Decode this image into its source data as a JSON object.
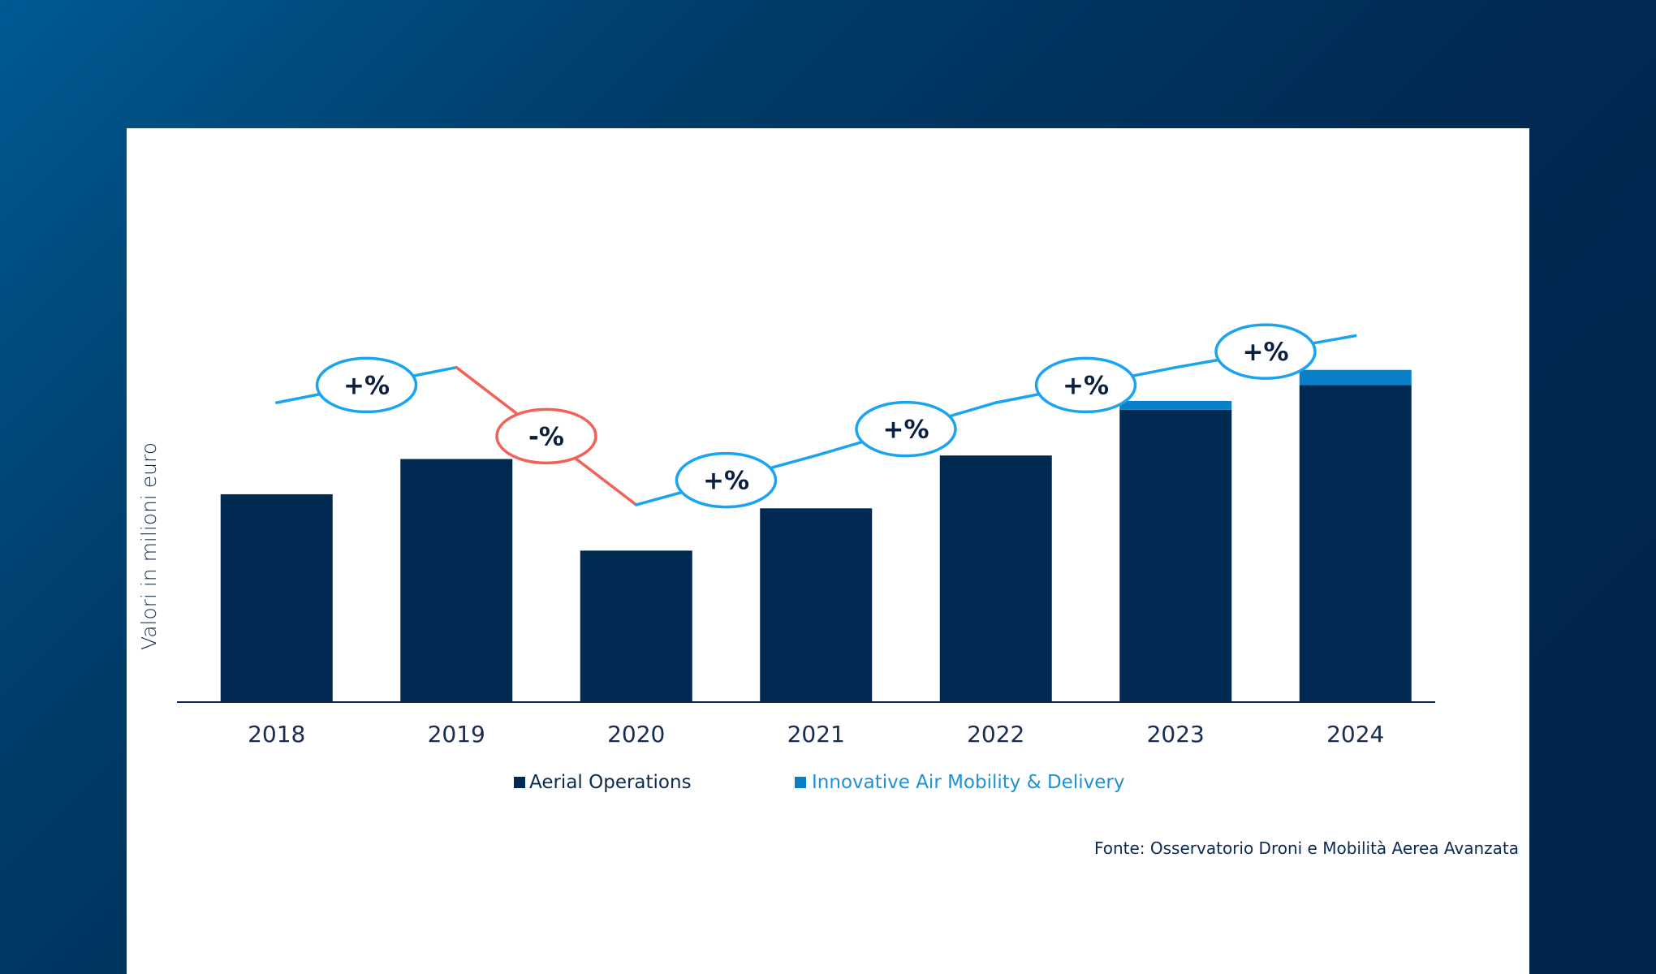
{
  "colors": {
    "aerial": "#002a52",
    "iam": "#0a7ec7",
    "trend_up": "#1aa3f0",
    "trend_down": "#f26157",
    "axis": "#0b2a52"
  },
  "chart_data": {
    "type": "bar",
    "stacked": true,
    "ylabel": "Valori in milioni euro",
    "xlabel": "",
    "categories": [
      "2018",
      "2019",
      "2020",
      "2021",
      "2022",
      "2023",
      "2024"
    ],
    "ylim": [
      0,
      100
    ],
    "series": [
      {
        "name": "Aerial Operations",
        "values": [
          59,
          69,
          43,
          55,
          70,
          83,
          90
        ]
      },
      {
        "name": "Innovative Air Mobility & Delivery",
        "values": [
          0,
          0,
          0,
          0,
          0,
          2.5,
          4.3
        ]
      }
    ],
    "trend": {
      "points": [
        85,
        95,
        56,
        70,
        85,
        95,
        104
      ],
      "labels": [
        "+%",
        "-%",
        "+%",
        "+%",
        "+%",
        "+%"
      ],
      "directions": [
        "up",
        "down",
        "up",
        "up",
        "up",
        "up"
      ]
    },
    "legend": [
      "Aerial Operations",
      "Innovative Air Mobility & Delivery"
    ],
    "legend_position": "bottom-center",
    "source": "Fonte: Osservatorio Droni e Mobilità Aerea Avanzata"
  }
}
